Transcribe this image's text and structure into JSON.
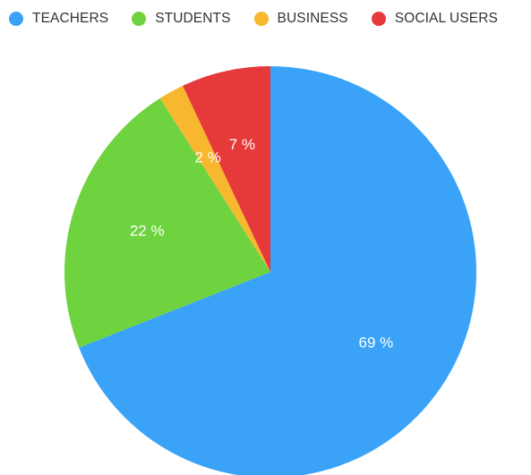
{
  "chart_data": {
    "type": "pie",
    "categories": [
      "TEACHERS",
      "STUDENTS",
      "BUSINESS",
      "SOCIAL USERS"
    ],
    "values": [
      69,
      22,
      2,
      7
    ],
    "value_labels": [
      "69 %",
      "22 %",
      "2 %",
      "7 %"
    ],
    "colors": [
      "#3aa3f8",
      "#6ed33f",
      "#f7b72e",
      "#e6393a"
    ],
    "legend_position": "top"
  }
}
